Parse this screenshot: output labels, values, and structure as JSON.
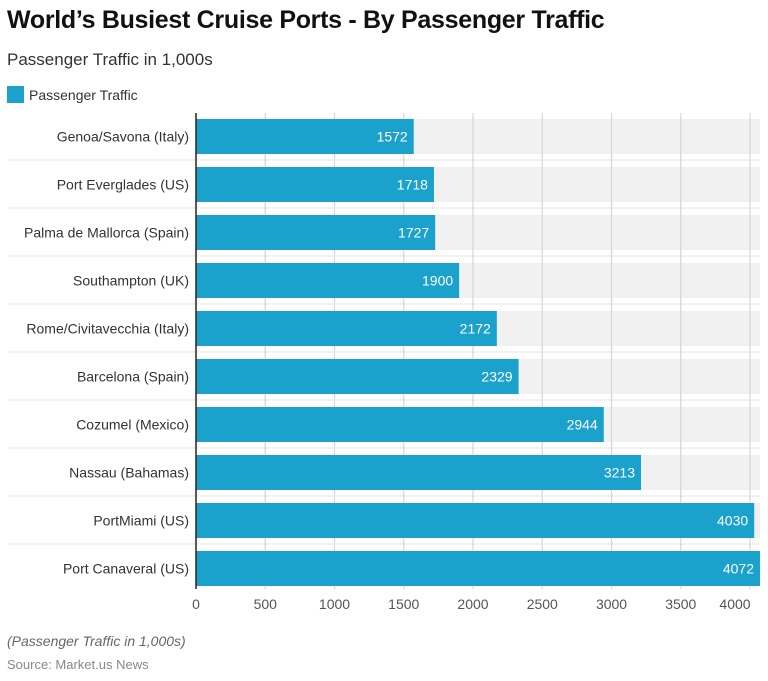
{
  "title": "World’s Busiest Cruise Ports - By Passenger Traffic",
  "subtitle": "Passenger Traffic in 1,000s",
  "note": "(Passenger Traffic in 1,000s)",
  "source": "Source: Market.us News",
  "chart_data": {
    "type": "bar",
    "orientation": "horizontal",
    "title": "World’s Busiest Cruise Ports - By Passenger Traffic",
    "subtitle": "Passenger Traffic in 1,000s",
    "categories": [
      "Genoa/Savona (Italy)",
      "Port Everglades (US)",
      "Palma de Mallorca (Spain)",
      "Southampton (UK)",
      "Rome/Civitavecchia (Italy)",
      "Barcelona (Spain)",
      "Cozumel (Mexico)",
      "Nassau (Bahamas)",
      "PortMiami (US)",
      "Port Canaveral (US)"
    ],
    "series": [
      {
        "name": "Passenger Traffic",
        "values": [
          1572,
          1718,
          1727,
          1900,
          2172,
          2329,
          2944,
          3213,
          4030,
          4072
        ],
        "color": "#1aa1cc"
      }
    ],
    "xticks": [
      0,
      500,
      1000,
      1500,
      2000,
      2500,
      3000,
      3500,
      4000
    ],
    "xlim": [
      0,
      4072
    ],
    "grid": true,
    "legend": "top-left"
  }
}
